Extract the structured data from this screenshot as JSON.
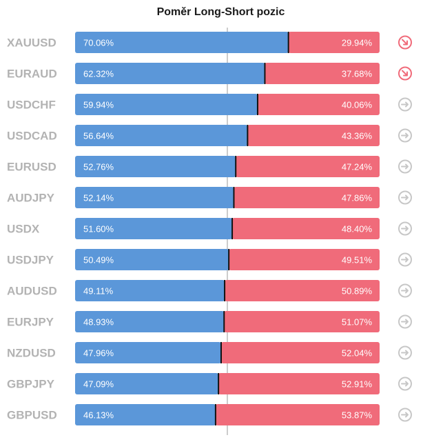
{
  "chart_data": {
    "type": "bar",
    "stacked": true,
    "orientation": "horizontal",
    "title": "Poměr Long-Short pozic",
    "categories": [
      "XAUUSD",
      "EURAUD",
      "USDCHF",
      "USDCAD",
      "EURUSD",
      "AUDJPY",
      "USDX",
      "USDJPY",
      "AUDUSD",
      "EURJPY",
      "NZDUSD",
      "GBPJPY",
      "GBPUSD"
    ],
    "series": [
      {
        "values": [
          70.06,
          62.32,
          59.94,
          56.64,
          52.76,
          52.14,
          51.6,
          50.49,
          49.11,
          48.93,
          47.96,
          47.09,
          46.13
        ],
        "labels": [
          "70.06%",
          "62.32%",
          "59.94%",
          "56.64%",
          "52.76%",
          "52.14%",
          "51.60%",
          "50.49%",
          "49.11%",
          "48.93%",
          "47.96%",
          "47.09%",
          "46.13%"
        ]
      },
      {
        "values": [
          29.94,
          37.68,
          40.06,
          43.36,
          47.24,
          47.86,
          48.4,
          49.51,
          50.89,
          51.07,
          52.04,
          52.91,
          53.87
        ],
        "labels": [
          "29.94%",
          "37.68%",
          "40.06%",
          "43.36%",
          "47.24%",
          "47.86%",
          "48.40%",
          "49.51%",
          "50.89%",
          "51.07%",
          "52.04%",
          "52.91%",
          "53.87%"
        ]
      }
    ],
    "xlim": [
      0,
      100
    ],
    "trend_icons": [
      "arrow-down-right-icon",
      "arrow-down-right-icon",
      "arrow-right-icon",
      "arrow-right-icon",
      "arrow-right-icon",
      "arrow-right-icon",
      "arrow-right-icon",
      "arrow-right-icon",
      "arrow-right-icon",
      "arrow-right-icon",
      "arrow-right-icon",
      "arrow-right-icon",
      "arrow-right-icon"
    ],
    "colors": {
      "long": "#5b97d9",
      "short": "#f06b7a",
      "icon_down": "#f06b7a",
      "icon_neutral": "#c7c7c7",
      "midline": "#9a9a9a"
    }
  }
}
